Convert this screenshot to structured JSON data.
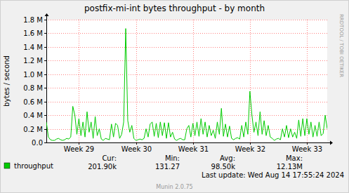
{
  "chart_data": {
    "type": "line",
    "title": "postfix-mi-int bytes throughput - by month",
    "y_label": "bytes / second",
    "x": [
      0,
      0.25,
      0.5,
      0.75,
      1,
      1.25,
      1.5,
      1.75,
      2,
      2.25,
      2.5,
      2.75,
      3,
      3.25,
      3.5,
      3.75,
      4,
      4.25,
      4.5,
      4.75,
      5,
      5.25,
      5.5,
      5.75,
      6,
      6.25,
      6.5,
      6.75,
      7,
      7.25,
      7.5,
      7.75,
      8,
      8.25,
      8.5,
      8.75,
      9,
      9.25,
      9.5,
      9.75,
      10,
      10.25,
      10.5,
      10.75,
      11,
      11.25,
      11.5,
      11.75,
      12,
      12.25,
      12.5,
      12.75,
      13,
      13.25,
      13.5,
      13.75,
      14,
      14.25,
      14.5,
      14.75,
      15,
      15.25,
      15.5,
      15.75,
      16,
      16.25,
      16.5,
      16.75,
      17,
      17.25,
      17.5,
      17.75,
      18,
      18.25,
      18.5,
      18.75,
      19,
      19.25,
      19.5,
      19.75,
      20,
      20.25,
      20.5,
      20.75,
      21,
      21.25,
      21.5,
      21.75,
      22,
      22.25,
      22.5,
      22.75,
      23,
      23.25,
      23.5,
      23.75,
      24,
      24.25,
      24.5,
      24.75,
      25,
      25.25,
      25.5,
      25.75,
      26,
      26.25,
      26.5,
      26.75,
      27,
      27.25,
      27.5,
      27.75,
      28,
      28.25,
      28.5,
      28.75,
      29,
      29.25,
      29.5,
      29.75,
      30,
      30.25,
      30.5,
      30.75,
      31,
      31.25,
      31.5,
      31.75,
      32,
      32.25,
      32.5,
      32.75,
      33,
      33.25,
      33.5,
      33.75,
      34,
      34.25,
      34.5
    ],
    "series": [
      {
        "name": "throughput",
        "color": "#00cc00",
        "values": [
          300000,
          80000,
          40000,
          30000,
          30000,
          50000,
          60000,
          40000,
          30000,
          40000,
          60000,
          50000,
          80000,
          530000,
          400000,
          120000,
          350000,
          100000,
          300000,
          80000,
          450000,
          150000,
          300000,
          60000,
          380000,
          100000,
          200000,
          50000,
          30000,
          60000,
          50000,
          40000,
          270000,
          80000,
          280000,
          250000,
          60000,
          120000,
          300000,
          1670000,
          320000,
          150000,
          250000,
          60000,
          30000,
          40000,
          50000,
          40000,
          60000,
          200000,
          80000,
          270000,
          300000,
          90000,
          280000,
          70000,
          300000,
          100000,
          290000,
          60000,
          290000,
          80000,
          150000,
          50000,
          30000,
          50000,
          60000,
          40000,
          40000,
          200000,
          250000,
          80000,
          280000,
          100000,
          300000,
          90000,
          350000,
          120000,
          300000,
          80000,
          250000,
          100000,
          180000,
          60000,
          300000,
          120000,
          500000,
          90000,
          270000,
          80000,
          240000,
          60000,
          40000,
          60000,
          70000,
          50000,
          250000,
          80000,
          300000,
          120000,
          750000,
          400000,
          150000,
          300000,
          100000,
          450000,
          120000,
          320000,
          100000,
          250000,
          80000,
          60000,
          30000,
          50000,
          60000,
          40000,
          200000,
          80000,
          250000,
          70000,
          200000,
          80000,
          150000,
          60000,
          330000,
          90000,
          350000,
          100000,
          350000,
          120000,
          300000,
          80000,
          250000,
          90000,
          300000,
          100000,
          130000,
          400000,
          200000
        ]
      }
    ],
    "xlim": [
      0,
      34.5
    ],
    "xticks": [
      {
        "value": 4,
        "label": "Week 29"
      },
      {
        "value": 11,
        "label": "Week 30"
      },
      {
        "value": 18,
        "label": "Week 31"
      },
      {
        "value": 25,
        "label": "Week 32"
      },
      {
        "value": 32,
        "label": "Week 33"
      }
    ],
    "ylim": [
      0,
      1800000
    ],
    "yticks": [
      {
        "value": 0,
        "label": "0.0"
      },
      {
        "value": 200000,
        "label": "0.2 M"
      },
      {
        "value": 400000,
        "label": "0.4 M"
      },
      {
        "value": 600000,
        "label": "0.6 M"
      },
      {
        "value": 800000,
        "label": "0.8 M"
      },
      {
        "value": 1000000,
        "label": "1.0 M"
      },
      {
        "value": 1200000,
        "label": "1.2 M"
      },
      {
        "value": 1400000,
        "label": "1.4 M"
      },
      {
        "value": 1600000,
        "label": "1.6 M"
      },
      {
        "value": 1800000,
        "label": "1.8 M"
      }
    ],
    "grid": true,
    "legend_stats": [
      {
        "label": "Cur:",
        "value": "201.90k"
      },
      {
        "label": "Min:",
        "value": "131.27"
      },
      {
        "label": "Avg:",
        "value": "98.50k"
      },
      {
        "label": "Max:",
        "value": "12.13M"
      }
    ],
    "footer": "Last update: Wed Aug 14 17:55:24 2024",
    "credit": "Munin 2.0.75",
    "watermark": "RRDTOOL / TOBI OETIKER"
  }
}
